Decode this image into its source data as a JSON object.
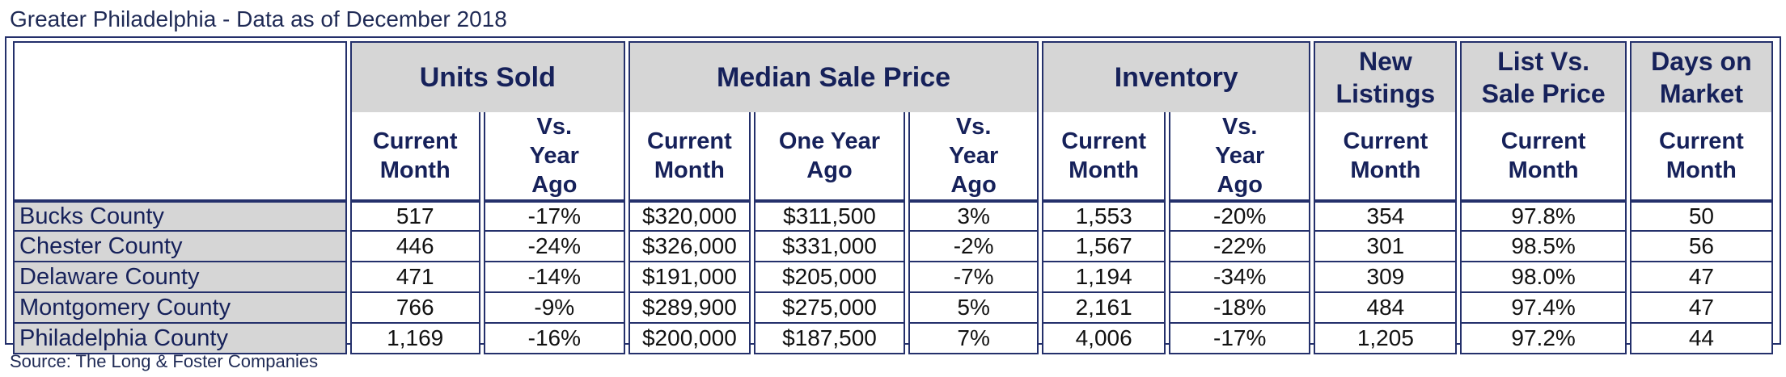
{
  "title": "Greater Philadelphia - Data as of December 2018",
  "source": "Source: The Long & Foster Companies",
  "groups": {
    "units_sold": "Units Sold",
    "median_sale_price": "Median Sale Price",
    "inventory": "Inventory",
    "new_listings": "New Listings",
    "list_vs_sale": "List Vs. Sale Price",
    "days_on_market": "Days on Market"
  },
  "subheaders": {
    "current_month": "Current Month",
    "vs_year_ago": "Vs. Year Ago",
    "one_year_ago": "One Year Ago"
  },
  "rows": [
    {
      "county": "Bucks County",
      "units": "517",
      "units_vs": "-17%",
      "price": "$320,000",
      "price_prior": "$311,500",
      "price_vs": "3%",
      "inventory": "1,553",
      "inventory_vs": "-20%",
      "new_listings": "354",
      "list_vs_sale": "97.8%",
      "dom": "50"
    },
    {
      "county": "Chester County",
      "units": "446",
      "units_vs": "-24%",
      "price": "$326,000",
      "price_prior": "$331,000",
      "price_vs": "-2%",
      "inventory": "1,567",
      "inventory_vs": "-22%",
      "new_listings": "301",
      "list_vs_sale": "98.5%",
      "dom": "56"
    },
    {
      "county": "Delaware County",
      "units": "471",
      "units_vs": "-14%",
      "price": "$191,000",
      "price_prior": "$205,000",
      "price_vs": "-7%",
      "inventory": "1,194",
      "inventory_vs": "-34%",
      "new_listings": "309",
      "list_vs_sale": "98.0%",
      "dom": "47"
    },
    {
      "county": "Montgomery County",
      "units": "766",
      "units_vs": "-9%",
      "price": "$289,900",
      "price_prior": "$275,000",
      "price_vs": "5%",
      "inventory": "2,161",
      "inventory_vs": "-18%",
      "new_listings": "484",
      "list_vs_sale": "97.4%",
      "dom": "47"
    },
    {
      "county": "Philadelphia County",
      "units": "1,169",
      "units_vs": "-16%",
      "price": "$200,000",
      "price_prior": "$187,500",
      "price_vs": "7%",
      "inventory": "4,006",
      "inventory_vs": "-17%",
      "new_listings": "1,205",
      "list_vs_sale": "97.2%",
      "dom": "44"
    }
  ],
  "colors": {
    "border": "#24306b",
    "header_fill": "#d6d6d6",
    "text": "#16215a"
  }
}
